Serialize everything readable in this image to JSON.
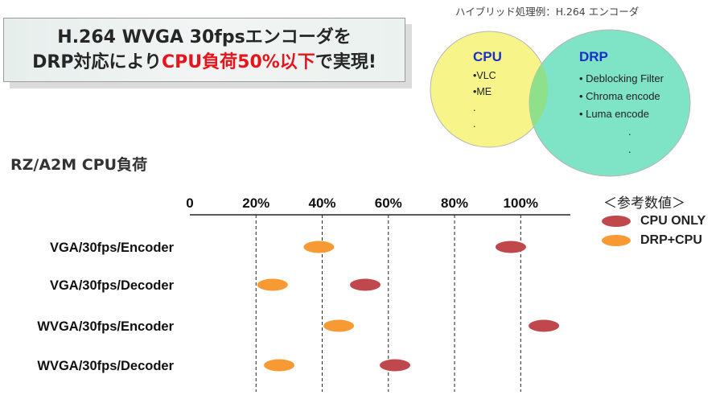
{
  "headline": {
    "line1": "H.264 WVGA 30fpsエンコーダを",
    "line2_prefix": "DRP対応により",
    "line2_highlight": "CPU負荷50%以下",
    "line2_suffix": "で実現!",
    "highlight_color": "#e8141b"
  },
  "venn": {
    "caption": "ハイブリッド処理例：H.264 エンコーダ",
    "cpu": {
      "title": "CPU",
      "items": [
        "•VLC",
        "•ME",
        ".",
        "."
      ],
      "color": "#f7f58a",
      "title_color": "#1a2fc9"
    },
    "drp": {
      "title": "DRP",
      "items": [
        "• Deblocking Filter",
        "• Chroma encode",
        "• Luma encode",
        ".",
        "."
      ],
      "color": "#7fe3c6",
      "title_color": "#1a2fc9"
    },
    "overlap_color": "#8fe08a"
  },
  "section_title": "RZ/A2M CPU負荷",
  "legend": {
    "title": "＜参考数値＞",
    "items": [
      {
        "label": "CPU ONLY",
        "color": "#c0474c"
      },
      {
        "label": "DRP+CPU",
        "color": "#f79a34"
      }
    ]
  },
  "chart_data": {
    "type": "scatter",
    "title": "RZ/A2M CPU負荷",
    "x_ticks": [
      "0",
      "20%",
      "40%",
      "60%",
      "80%",
      "100%"
    ],
    "x_tick_values": [
      0,
      20,
      40,
      60,
      80,
      100
    ],
    "xlim": [
      0,
      115
    ],
    "categories": [
      "VGA/30fps/Encoder",
      "VGA/30fps/Decoder",
      "WVGA/30fps/Encoder",
      "WVGA/30fps/Decoder"
    ],
    "series": [
      {
        "name": "CPU ONLY",
        "color": "#c0474c",
        "values": [
          97,
          53,
          107,
          62
        ]
      },
      {
        "name": "DRP+CPU",
        "color": "#f79a34",
        "values": [
          39,
          25,
          45,
          27
        ]
      }
    ],
    "grid": "vertical dashed at 20%, 40%, 60%, 80%, 100%",
    "legend_position": "top-right"
  }
}
